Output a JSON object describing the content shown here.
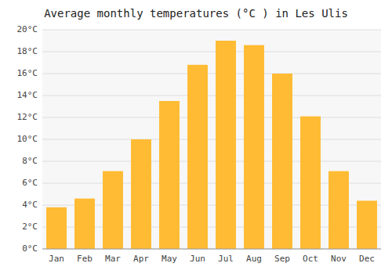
{
  "chart_data": {
    "type": "bar",
    "title": "Average monthly temperatures (°C ) in Les Ulis",
    "categories": [
      "Jan",
      "Feb",
      "Mar",
      "Apr",
      "May",
      "Jun",
      "Jul",
      "Aug",
      "Sep",
      "Oct",
      "Nov",
      "Dec"
    ],
    "values": [
      3.8,
      4.6,
      7.1,
      10.0,
      13.5,
      16.8,
      19.0,
      18.6,
      16.0,
      12.1,
      7.1,
      4.4
    ],
    "color": "#FFBB33",
    "ylim": [
      0,
      20
    ],
    "yticks": [
      {
        "value": 0,
        "label": "0°C"
      },
      {
        "value": 2,
        "label": "2°C"
      },
      {
        "value": 4,
        "label": "4°C"
      },
      {
        "value": 6,
        "label": "6°C"
      },
      {
        "value": 8,
        "label": "8°C"
      },
      {
        "value": 10,
        "label": "10°C"
      },
      {
        "value": 12,
        "label": "12°C"
      },
      {
        "value": 14,
        "label": "14°C"
      },
      {
        "value": 16,
        "label": "16°C"
      },
      {
        "value": 18,
        "label": "18°C"
      },
      {
        "value": 20,
        "label": "20°C"
      }
    ],
    "grid": true
  }
}
